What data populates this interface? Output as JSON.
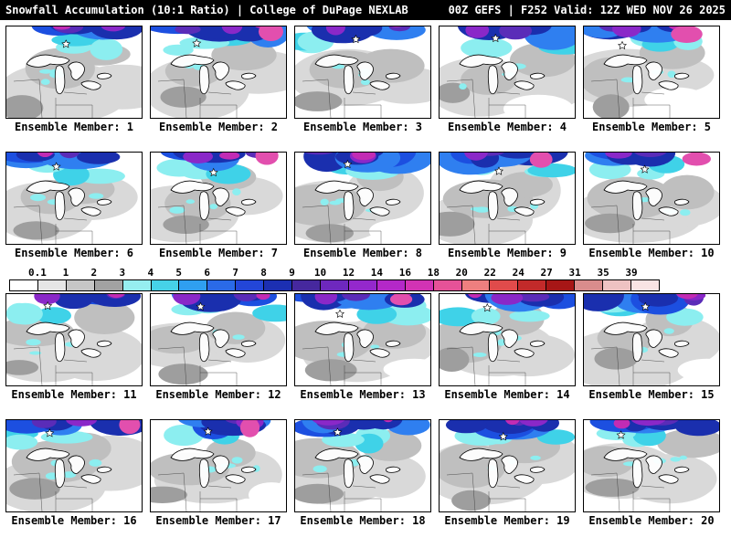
{
  "header": {
    "left": "Snowfall Accumulation (10:1 Ratio) | College of DuPage NEXLAB",
    "right": "00Z GEFS | F252 Valid: 12Z WED NOV 26 2025",
    "bg": "#000000",
    "fg": "#ffffff"
  },
  "panels": {
    "caption_prefix": "Ensemble Member:",
    "labels": [
      "Ensemble Member: 1",
      "Ensemble Member: 2",
      "Ensemble Member: 3",
      "Ensemble Member: 4",
      "Ensemble Member: 5",
      "Ensemble Member: 6",
      "Ensemble Member: 7",
      "Ensemble Member: 8",
      "Ensemble Member: 9",
      "Ensemble Member: 10",
      "Ensemble Member: 11",
      "Ensemble Member: 12",
      "Ensemble Member: 13",
      "Ensemble Member: 14",
      "Ensemble Member: 15",
      "Ensemble Member: 16",
      "Ensemble Member: 17",
      "Ensemble Member: 18",
      "Ensemble Member: 19",
      "Ensemble Member: 20"
    ]
  },
  "colorbar": {
    "tick_labels": [
      "0.1",
      "1",
      "2",
      "3",
      "4",
      "5",
      "6",
      "7",
      "8",
      "9",
      "10",
      "12",
      "14",
      "16",
      "18",
      "20",
      "22",
      "24",
      "27",
      "31",
      "35",
      "39"
    ],
    "segment_colors": [
      "#ffffff",
      "#e6e6e6",
      "#c6c6c6",
      "#a2a2a2",
      "#96eef0",
      "#46d2e8",
      "#2f9ff0",
      "#2a6ae8",
      "#2346d8",
      "#1c2fb2",
      "#46289e",
      "#6e28be",
      "#9428cc",
      "#b428c8",
      "#d233b4",
      "#e65298",
      "#ee7f7f",
      "#e04b4b",
      "#c22a2a",
      "#a61616",
      "#d98c8c",
      "#eec2c2",
      "#f9e4e4"
    ]
  },
  "map_palette": {
    "grays": [
      "#d9d9d9",
      "#bfbfbf",
      "#9e9e9e"
    ],
    "cyans": [
      "#8ceef0",
      "#3fd2e8"
    ],
    "blues": [
      "#2f7ff0",
      "#1c4fe0",
      "#1a2fae"
    ],
    "purples": [
      "#5a2cb8",
      "#8a28c8"
    ],
    "magentas": [
      "#c22cb4",
      "#e24fae"
    ],
    "lake_fill": "#ffffff",
    "outline": "#000000",
    "border": "#333333"
  }
}
